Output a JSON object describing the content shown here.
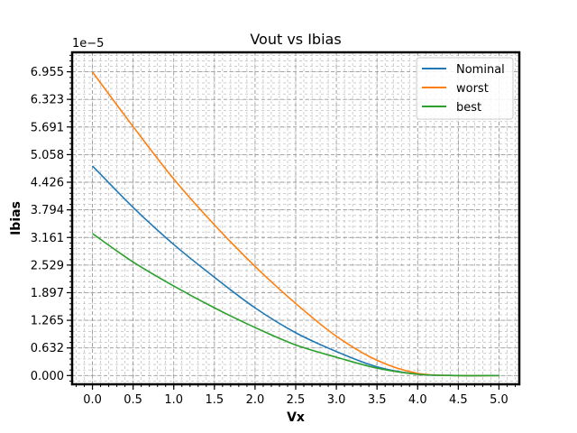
{
  "chart_data": {
    "type": "line",
    "title": "Vout vs Ibias",
    "xlabel": "Vx",
    "ylabel": "Ibias",
    "y_offset_label": "1e−5",
    "xlim": [
      -0.25,
      5.25
    ],
    "ylim": [
      -0.2,
      7.4
    ],
    "x_ticks": [
      "0.0",
      "0.5",
      "1.0",
      "1.5",
      "2.0",
      "2.5",
      "3.0",
      "3.5",
      "4.0",
      "4.5",
      "5.0"
    ],
    "y_ticks": [
      "0.000",
      "0.632",
      "1.265",
      "1.897",
      "2.529",
      "3.161",
      "3.794",
      "4.426",
      "5.058",
      "5.691",
      "6.323",
      "6.955"
    ],
    "grid": true,
    "legend_position": "top-right",
    "x": [
      0,
      0.5,
      1.0,
      1.5,
      2.0,
      2.5,
      3.0,
      3.5,
      4.0,
      4.5,
      5.0
    ],
    "series": [
      {
        "name": "Nominal",
        "color": "#1f77b4",
        "values": [
          4.8,
          3.85,
          3.0,
          2.25,
          1.55,
          0.98,
          0.55,
          0.2,
          0.03,
          0.0,
          0.0
        ]
      },
      {
        "name": "worst",
        "color": "#ff7f0e",
        "values": [
          6.95,
          5.7,
          4.5,
          3.45,
          2.5,
          1.65,
          0.9,
          0.35,
          0.05,
          0.0,
          0.0
        ]
      },
      {
        "name": "best",
        "color": "#2ca02c",
        "values": [
          3.25,
          2.6,
          2.05,
          1.55,
          1.1,
          0.7,
          0.42,
          0.17,
          0.03,
          0.0,
          0.0
        ]
      }
    ]
  }
}
